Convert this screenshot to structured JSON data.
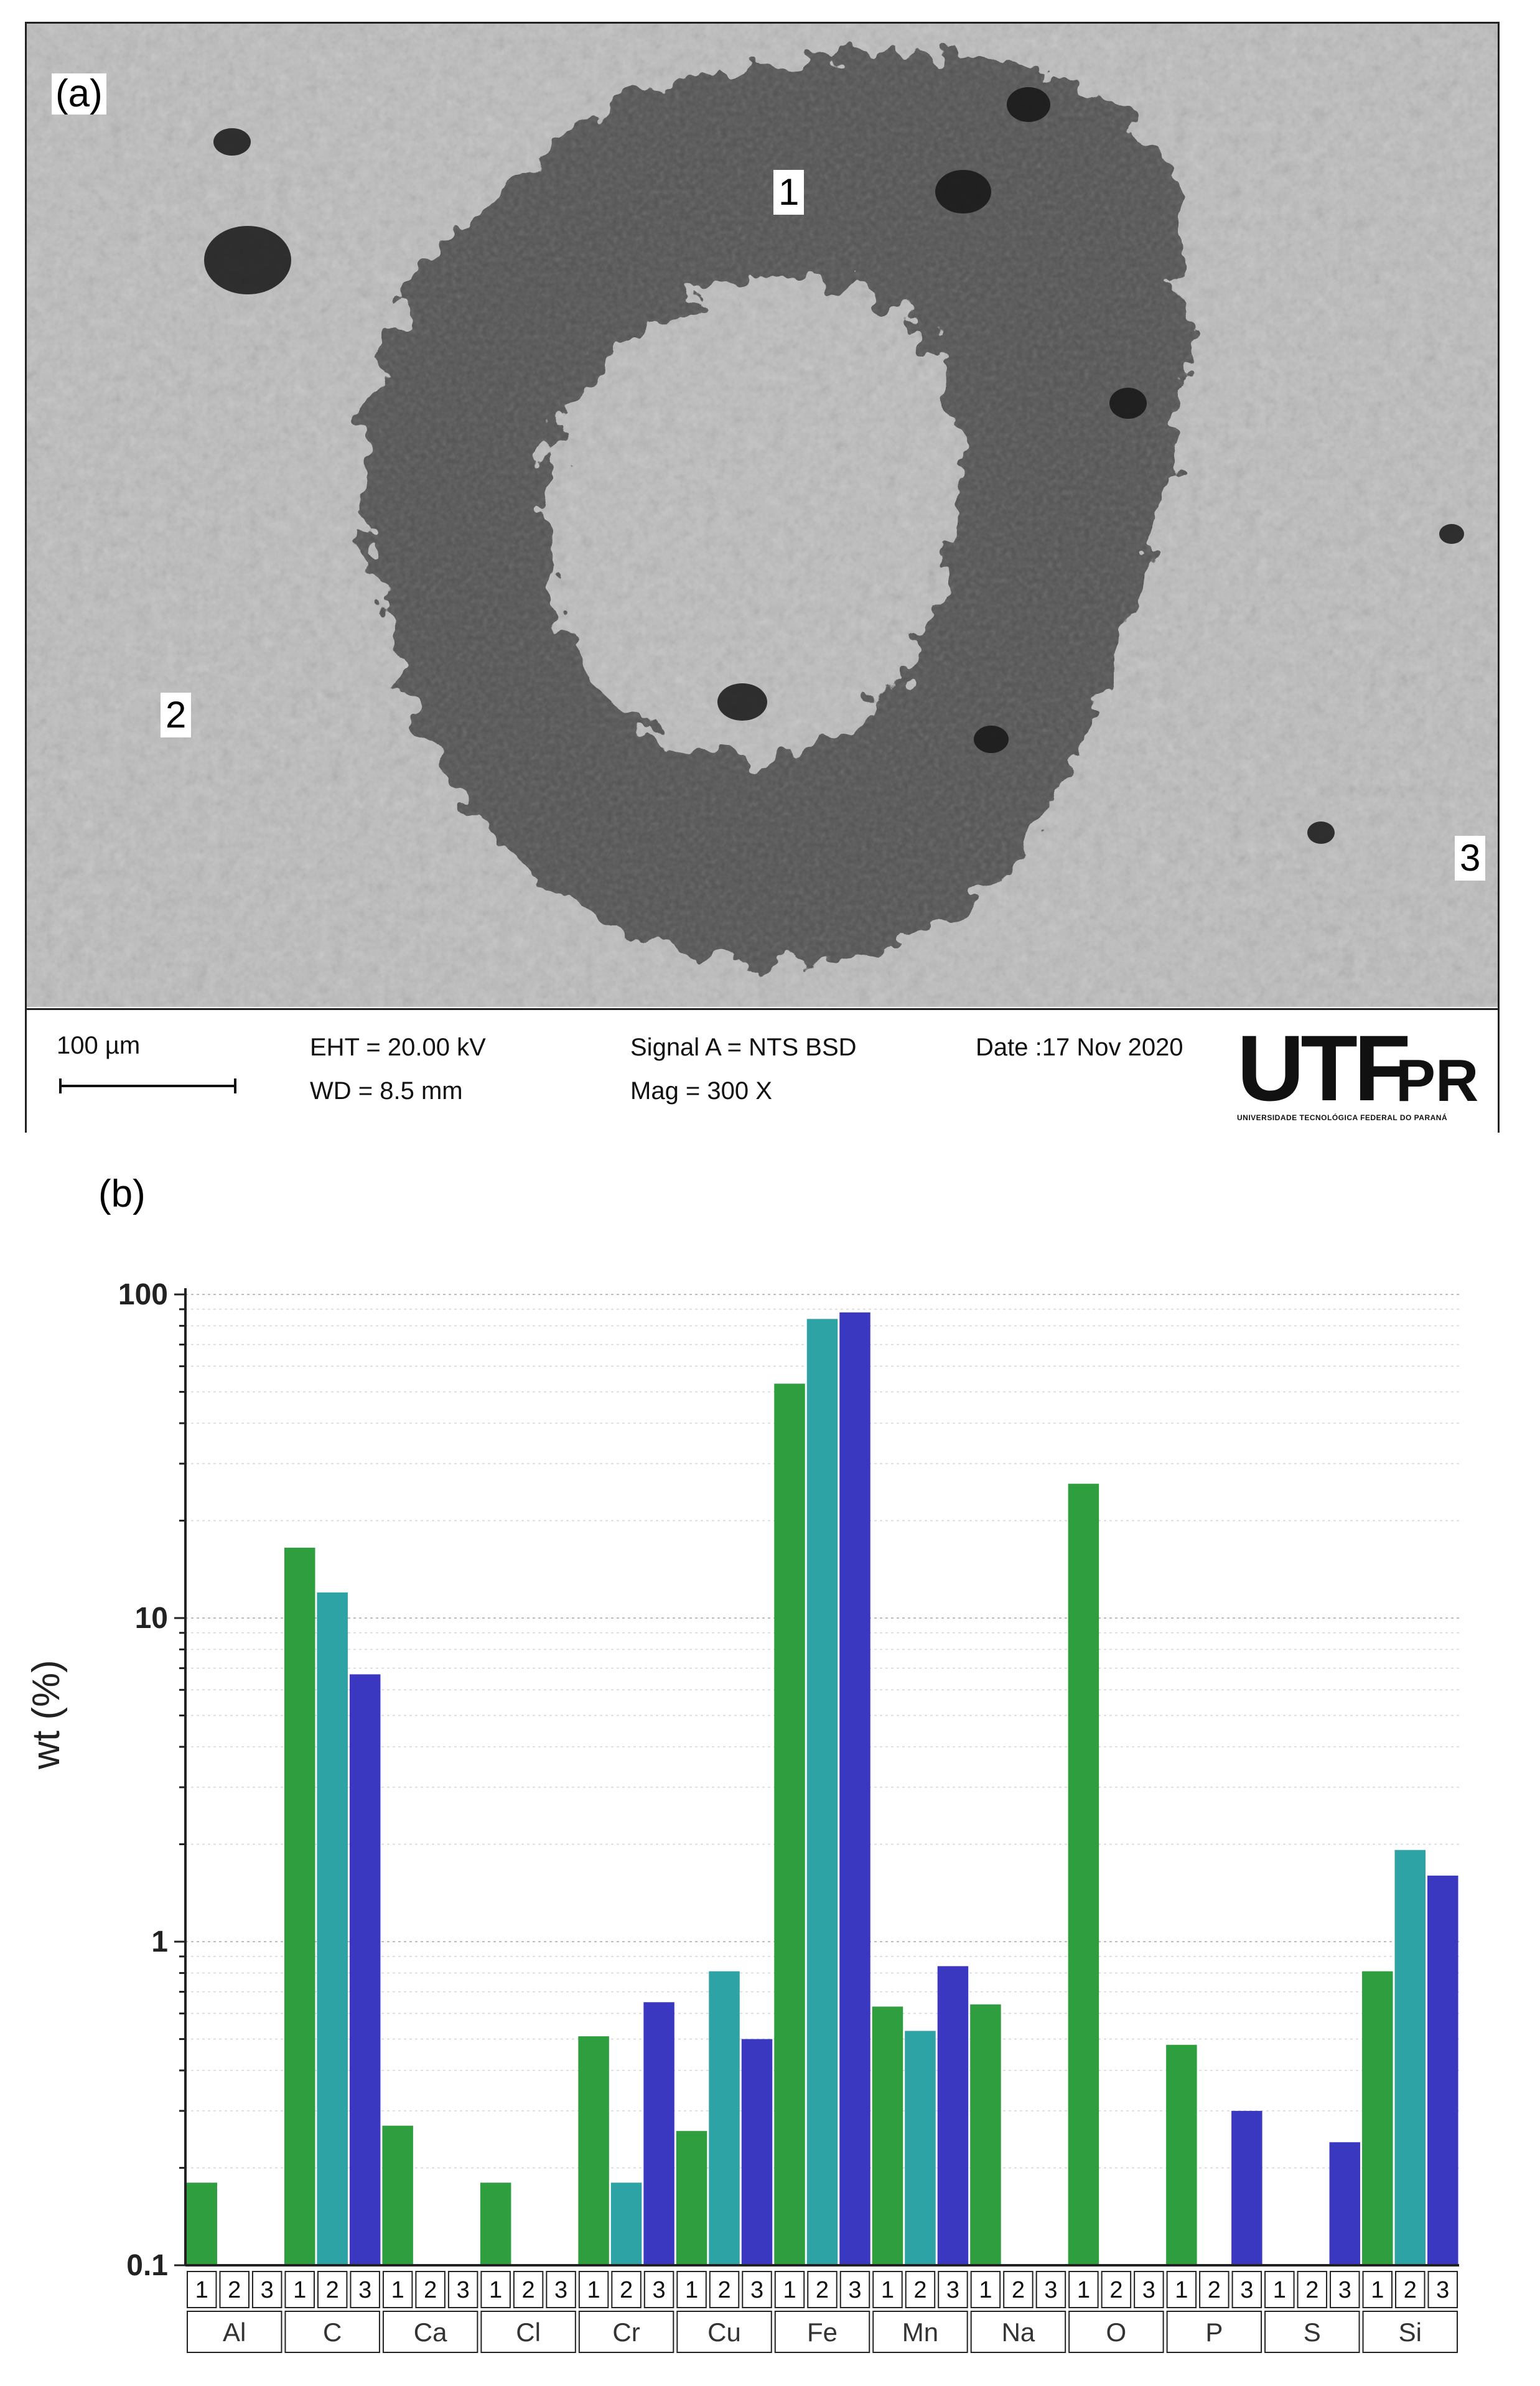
{
  "panel_a": {
    "label": "(a)",
    "regions": [
      "1",
      "2",
      "3"
    ],
    "scale": "100 µm",
    "eht": "EHT = 20.00 kV",
    "wd": "WD =  8.5 mm",
    "signal": "Signal A = NTS BSD",
    "mag": "Mag =    300 X",
    "date": "Date :17 Nov 2020",
    "logo": {
      "text": "UTFPR",
      "subtitle": "UNIVERSIDADE TECNOLÓGICA FEDERAL DO PARANÁ"
    }
  },
  "panel_b": {
    "label": "(b)"
  },
  "chart_data": {
    "type": "bar",
    "ylabel": "wt (%)",
    "xlabel": "",
    "yscale": "log",
    "ylim": [
      0.1,
      100
    ],
    "yticks": [
      "0.1",
      "1",
      "10",
      "100"
    ],
    "grid": true,
    "categories": [
      "Al",
      "C",
      "Ca",
      "Cl",
      "Cr",
      "Cu",
      "Fe",
      "Mn",
      "Na",
      "O",
      "P",
      "S",
      "Si"
    ],
    "points": [
      "1",
      "2",
      "3"
    ],
    "colors": [
      "#2e9e3e",
      "#2ea3a5",
      "#3a37c1"
    ],
    "series": [
      {
        "values": [
          0.18,
          16.5,
          0.27,
          0.18,
          0.51,
          0.26,
          53,
          0.63,
          0.64,
          26,
          0.48,
          null,
          0.81
        ]
      },
      {
        "values": [
          null,
          12.0,
          null,
          null,
          0.18,
          0.81,
          84,
          0.53,
          null,
          null,
          null,
          null,
          1.92
        ]
      },
      {
        "values": [
          null,
          6.7,
          null,
          null,
          0.65,
          0.5,
          88,
          0.84,
          null,
          null,
          0.3,
          0.24,
          1.6
        ]
      }
    ]
  }
}
